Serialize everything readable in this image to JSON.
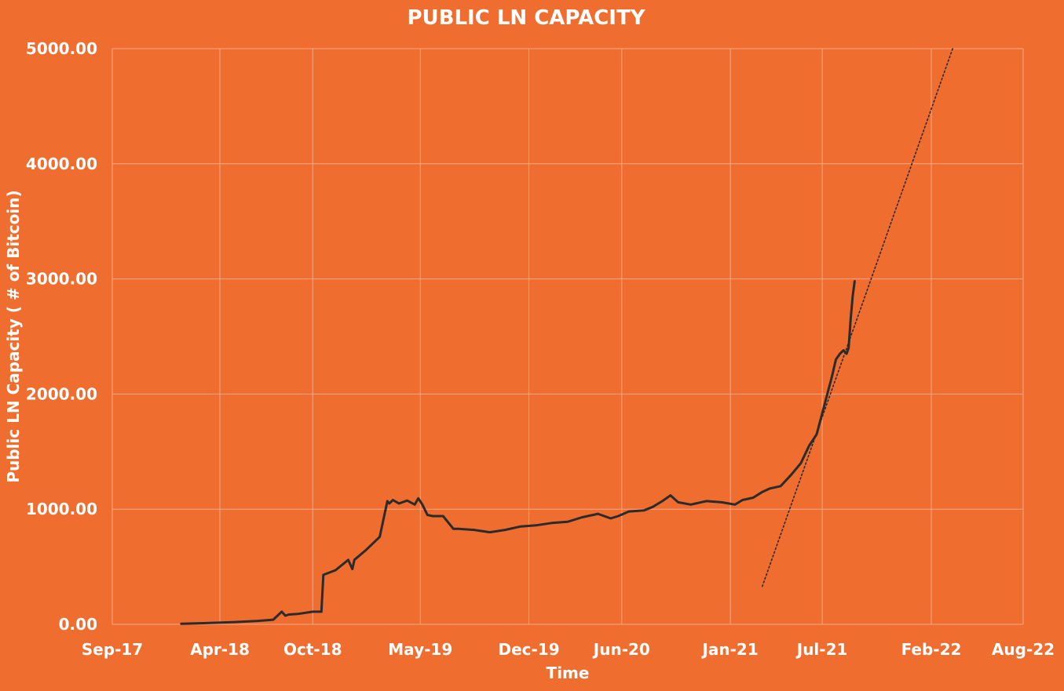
{
  "colors": {
    "background": "#EE6D2F",
    "gridline": "#F6A98A",
    "line": "#2B2B2B",
    "text": "#FFFFFF"
  },
  "chart_data": {
    "type": "line",
    "title": "PUBLIC LN CAPACITY",
    "xlabel": "Time",
    "ylabel": "Public LN Capacity ( # of Bitcoin)",
    "x_axis_type": "date",
    "xlim": [
      "2017-09-01",
      "2022-08-01"
    ],
    "ylim": [
      0,
      5000
    ],
    "grid": true,
    "legend": "none",
    "x_ticks": [
      {
        "date": "2017-09-01",
        "label": "Sep-17"
      },
      {
        "date": "2018-04-01",
        "label": "Apr-18"
      },
      {
        "date": "2018-10-01",
        "label": "Oct-18"
      },
      {
        "date": "2019-05-01",
        "label": "May-19"
      },
      {
        "date": "2019-12-01",
        "label": "Dec-19"
      },
      {
        "date": "2020-06-01",
        "label": "Jun-20"
      },
      {
        "date": "2021-01-01",
        "label": "Jan-21"
      },
      {
        "date": "2021-07-01",
        "label": "Jul-21"
      },
      {
        "date": "2022-02-01",
        "label": "Feb-22"
      },
      {
        "date": "2022-08-01",
        "label": "Aug-22"
      }
    ],
    "y_ticks": [
      {
        "value": 0,
        "label": "0.00"
      },
      {
        "value": 1000,
        "label": "1000.00"
      },
      {
        "value": 2000,
        "label": "2000.00"
      },
      {
        "value": 3000,
        "label": "3000.00"
      },
      {
        "value": 4000,
        "label": "4000.00"
      },
      {
        "value": 5000,
        "label": "5000.00"
      }
    ],
    "series": [
      {
        "style": "solid",
        "x": [
          "2018-01-15",
          "2018-03-01",
          "2018-05-01",
          "2018-06-15",
          "2018-07-15",
          "2018-08-01",
          "2018-08-08",
          "2018-08-15",
          "2018-09-01",
          "2018-10-01",
          "2018-10-12",
          "2018-10-18",
          "2018-10-22",
          "2018-11-15",
          "2018-12-10",
          "2018-12-18",
          "2018-12-22",
          "2019-01-15",
          "2019-02-10",
          "2019-02-25",
          "2019-03-01",
          "2019-03-08",
          "2019-03-20",
          "2019-04-05",
          "2019-04-20",
          "2019-04-27",
          "2019-05-05",
          "2019-05-15",
          "2019-05-25",
          "2019-06-15",
          "2019-07-05",
          "2019-07-15",
          "2019-08-15",
          "2019-09-15",
          "2019-10-15",
          "2019-11-15",
          "2019-12-15",
          "2020-01-15",
          "2020-02-15",
          "2020-03-15",
          "2020-04-15",
          "2020-05-10",
          "2020-05-25",
          "2020-06-15",
          "2020-07-15",
          "2020-08-01",
          "2020-08-20",
          "2020-09-05",
          "2020-09-20",
          "2020-10-15",
          "2020-11-15",
          "2020-12-15",
          "2021-01-10",
          "2021-01-25",
          "2021-02-15",
          "2021-03-05",
          "2021-03-20",
          "2021-04-10",
          "2021-05-01",
          "2021-05-20",
          "2021-06-05",
          "2021-06-20",
          "2021-07-05",
          "2021-07-20",
          "2021-07-28",
          "2021-08-05",
          "2021-08-12",
          "2021-08-18",
          "2021-08-22",
          "2021-08-26",
          "2021-08-30",
          "2021-09-03"
        ],
        "values": [
          5,
          10,
          20,
          30,
          40,
          110,
          75,
          85,
          90,
          110,
          110,
          110,
          430,
          470,
          560,
          480,
          560,
          650,
          760,
          1070,
          1050,
          1080,
          1050,
          1075,
          1040,
          1095,
          1040,
          950,
          940,
          940,
          830,
          830,
          820,
          800,
          820,
          850,
          860,
          880,
          890,
          930,
          960,
          920,
          940,
          980,
          990,
          1020,
          1070,
          1120,
          1060,
          1040,
          1070,
          1060,
          1040,
          1080,
          1100,
          1150,
          1180,
          1200,
          1300,
          1400,
          1550,
          1650,
          1900,
          2150,
          2300,
          2350,
          2380,
          2350,
          2400,
          2650,
          2850,
          2980
        ]
      },
      {
        "style": "dotted",
        "x": [
          "2021-03-05",
          "2022-03-15"
        ],
        "values": [
          330,
          5000
        ]
      }
    ]
  }
}
